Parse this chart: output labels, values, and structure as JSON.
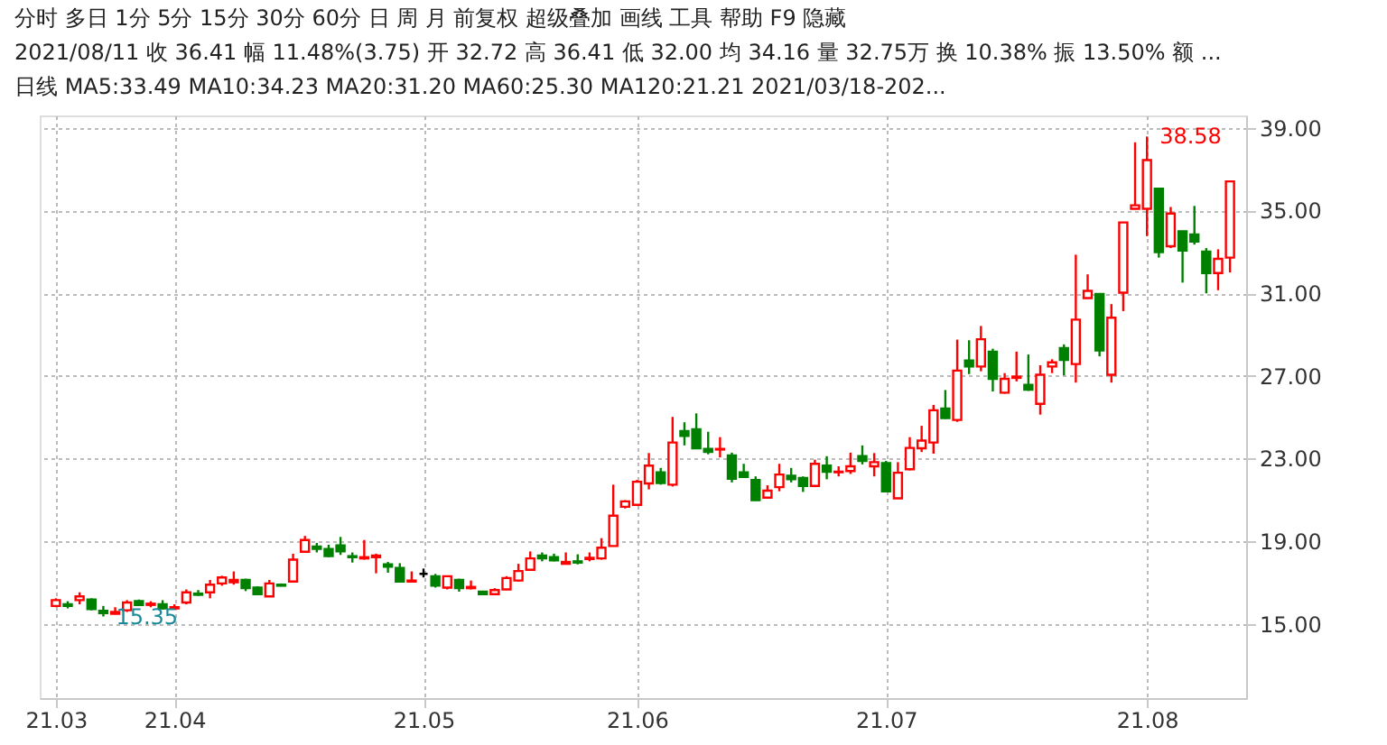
{
  "chart_data": {
    "type": "candlestick",
    "categories": [
      "21.03",
      null,
      null,
      null,
      null,
      null,
      null,
      null,
      null,
      null,
      "21.04",
      null,
      null,
      null,
      null,
      null,
      null,
      null,
      null,
      null,
      null,
      null,
      null,
      null,
      null,
      null,
      null,
      null,
      null,
      null,
      null,
      "21.05",
      null,
      null,
      null,
      null,
      null,
      null,
      null,
      null,
      null,
      null,
      null,
      null,
      null,
      null,
      null,
      null,
      null,
      "21.06",
      null,
      null,
      null,
      null,
      null,
      null,
      null,
      null,
      null,
      null,
      null,
      null,
      null,
      null,
      null,
      null,
      null,
      null,
      null,
      null,
      "21.07",
      null,
      null,
      null,
      null,
      null,
      null,
      null,
      null,
      null,
      null,
      null,
      null,
      null,
      null,
      null,
      null,
      null,
      null,
      null,
      null,
      null,
      "21.08",
      null,
      null,
      null,
      null,
      null,
      null,
      null
    ],
    "ohlc": [
      [
        15.86,
        16.23,
        15.8,
        16.14
      ],
      [
        15.94,
        16.09,
        15.74,
        15.86
      ],
      [
        16.14,
        16.52,
        15.94,
        16.32
      ],
      [
        16.17,
        16.23,
        15.65,
        15.71
      ],
      [
        15.63,
        15.86,
        15.35,
        15.51
      ],
      [
        15.48,
        15.8,
        15.45,
        15.57
      ],
      [
        15.65,
        16.14,
        15.57,
        16.03
      ],
      [
        16.09,
        16.17,
        15.86,
        15.91
      ],
      [
        15.91,
        16.09,
        15.8,
        15.97
      ],
      [
        15.94,
        16.14,
        15.68,
        15.74
      ],
      [
        15.74,
        15.94,
        15.68,
        15.8
      ],
      [
        16.03,
        16.66,
        15.94,
        16.52
      ],
      [
        16.46,
        16.63,
        16.35,
        16.4
      ],
      [
        16.52,
        17.12,
        16.23,
        16.89
      ],
      [
        16.95,
        17.32,
        16.84,
        17.24
      ],
      [
        17.01,
        17.53,
        16.89,
        17.12
      ],
      [
        17.12,
        17.18,
        16.58,
        16.72
      ],
      [
        16.75,
        16.81,
        16.4,
        16.43
      ],
      [
        16.32,
        17.12,
        16.29,
        16.95
      ],
      [
        16.89,
        16.95,
        16.81,
        16.84
      ],
      [
        17.04,
        18.39,
        17.01,
        18.1
      ],
      [
        18.48,
        19.25,
        18.45,
        19.05
      ],
      [
        18.74,
        18.91,
        18.45,
        18.62
      ],
      [
        18.62,
        18.82,
        18.22,
        18.27
      ],
      [
        18.79,
        19.2,
        18.33,
        18.5
      ],
      [
        18.27,
        18.45,
        17.96,
        18.22
      ],
      [
        18.16,
        19.05,
        18.1,
        18.22
      ],
      [
        18.22,
        18.39,
        17.44,
        18.3
      ],
      [
        17.87,
        17.99,
        17.47,
        17.76
      ],
      [
        17.7,
        17.93,
        17.01,
        17.04
      ],
      [
        17.04,
        17.53,
        17.01,
        17.09
      ],
      [
        17.41,
        17.67,
        17.24,
        17.41
      ],
      [
        17.3,
        17.41,
        16.75,
        16.84
      ],
      [
        16.75,
        17.3,
        16.66,
        17.3
      ],
      [
        17.12,
        17.18,
        16.55,
        16.72
      ],
      [
        16.72,
        17.09,
        16.66,
        16.78
      ],
      [
        16.55,
        16.58,
        16.4,
        16.43
      ],
      [
        16.43,
        16.72,
        16.4,
        16.63
      ],
      [
        16.66,
        17.3,
        16.63,
        17.21
      ],
      [
        17.09,
        17.9,
        17.04,
        17.55
      ],
      [
        17.61,
        18.5,
        17.58,
        18.16
      ],
      [
        18.3,
        18.45,
        18.02,
        18.16
      ],
      [
        18.22,
        18.39,
        18.02,
        18.07
      ],
      [
        17.9,
        18.45,
        17.87,
        17.99
      ],
      [
        18.02,
        18.36,
        17.87,
        17.96
      ],
      [
        18.13,
        18.45,
        18.02,
        18.19
      ],
      [
        18.16,
        19.14,
        18.1,
        18.68
      ],
      [
        18.76,
        21.73,
        18.74,
        20.23
      ],
      [
        20.66,
        20.98,
        20.58,
        20.92
      ],
      [
        20.75,
        21.96,
        20.72,
        21.87
      ],
      [
        21.79,
        23.26,
        21.5,
        22.65
      ],
      [
        22.33,
        22.54,
        21.73,
        21.81
      ],
      [
        21.73,
        25.01,
        21.64,
        23.77
      ],
      [
        24.32,
        24.75,
        23.63,
        24.09
      ],
      [
        24.41,
        25.18,
        23.46,
        23.49
      ],
      [
        23.46,
        24.29,
        23.2,
        23.31
      ],
      [
        23.43,
        24.03,
        23.05,
        23.46
      ],
      [
        23.14,
        23.28,
        21.84,
        22.02
      ],
      [
        22.33,
        22.74,
        22.05,
        22.1
      ],
      [
        21.96,
        22.13,
        20.95,
        20.98
      ],
      [
        21.1,
        21.7,
        21.07,
        21.44
      ],
      [
        21.61,
        22.74,
        21.41,
        22.22
      ],
      [
        22.16,
        22.54,
        21.84,
        21.99
      ],
      [
        22.05,
        22.13,
        21.38,
        21.67
      ],
      [
        21.67,
        22.94,
        21.61,
        22.74
      ],
      [
        22.65,
        23.11,
        21.99,
        22.36
      ],
      [
        22.33,
        22.62,
        22.13,
        22.36
      ],
      [
        22.39,
        23.28,
        22.25,
        22.62
      ],
      [
        23.11,
        23.63,
        22.71,
        22.88
      ],
      [
        22.62,
        23.26,
        22.13,
        22.82
      ],
      [
        22.77,
        22.88,
        21.38,
        21.41
      ],
      [
        21.07,
        22.82,
        21.04,
        22.31
      ],
      [
        22.48,
        24.03,
        22.42,
        23.51
      ],
      [
        23.49,
        24.58,
        23.31,
        23.86
      ],
      [
        23.77,
        25.59,
        23.23,
        25.33
      ],
      [
        25.41,
        26.31,
        24.92,
        24.95
      ],
      [
        24.86,
        28.75,
        24.77,
        27.25
      ],
      [
        27.74,
        28.72,
        27.08,
        27.45
      ],
      [
        27.45,
        29.41,
        27.22,
        28.77
      ],
      [
        28.17,
        28.31,
        26.24,
        26.85
      ],
      [
        26.18,
        27.13,
        26.13,
        26.85
      ],
      [
        26.9,
        28.17,
        26.73,
        26.96
      ],
      [
        26.56,
        28.03,
        26.27,
        26.33
      ],
      [
        25.64,
        27.51,
        25.12,
        27.05
      ],
      [
        27.45,
        27.8,
        27.13,
        27.65
      ],
      [
        28.34,
        28.52,
        27.02,
        27.77
      ],
      [
        27.57,
        32.86,
        26.67,
        29.72
      ],
      [
        30.76,
        31.91,
        30.73,
        31.11
      ],
      [
        30.96,
        30.96,
        27.94,
        28.23
      ],
      [
        27.05,
        30.47,
        26.67,
        29.81
      ],
      [
        31.02,
        34.42,
        30.13,
        34.42
      ],
      [
        35.08,
        38.3,
        35.08,
        35.25
      ],
      [
        35.08,
        38.58,
        33.76,
        37.44
      ],
      [
        36.06,
        36.06,
        32.72,
        32.98
      ],
      [
        33.27,
        35.17,
        33.18,
        34.85
      ],
      [
        33.99,
        33.99,
        31.51,
        33.06
      ],
      [
        33.84,
        35.22,
        33.35,
        33.5
      ],
      [
        33.01,
        33.18,
        30.99,
        31.97
      ],
      [
        31.97,
        33.12,
        31.14,
        32.66
      ],
      [
        32.72,
        36.41,
        32.0,
        36.41
      ]
    ],
    "ylim": [
      11.4,
      39.6
    ],
    "yticks": [
      {
        "value": 15,
        "label": "15.00"
      },
      {
        "value": 19,
        "label": "19.00"
      },
      {
        "value": 23,
        "label": "23.00"
      },
      {
        "value": 27,
        "label": "27.00"
      },
      {
        "value": 31,
        "label": "31.00"
      },
      {
        "value": 35,
        "label": "35.00"
      },
      {
        "value": 39,
        "label": "39.00"
      }
    ],
    "grid": true,
    "annotations": [
      "分时  多日  1分  5分  15分  30分  60分  日  周  月  前复权  超级叠加  画线  工具  帮助  F9  隐藏",
      "2021/08/11  收 36.41  幅 11.48%(3.75)  开 32.72  高 36.41  低 32.00  均 34.16  量 32.75万  换 10.38%  振 13.50%  额 ...",
      "日线  MA5:33.49  MA10:34.23  MA20:31.20  MA60:25.30  MA120:21.21  2021/03/18-202...",
      "15.35",
      "38.58"
    ]
  }
}
